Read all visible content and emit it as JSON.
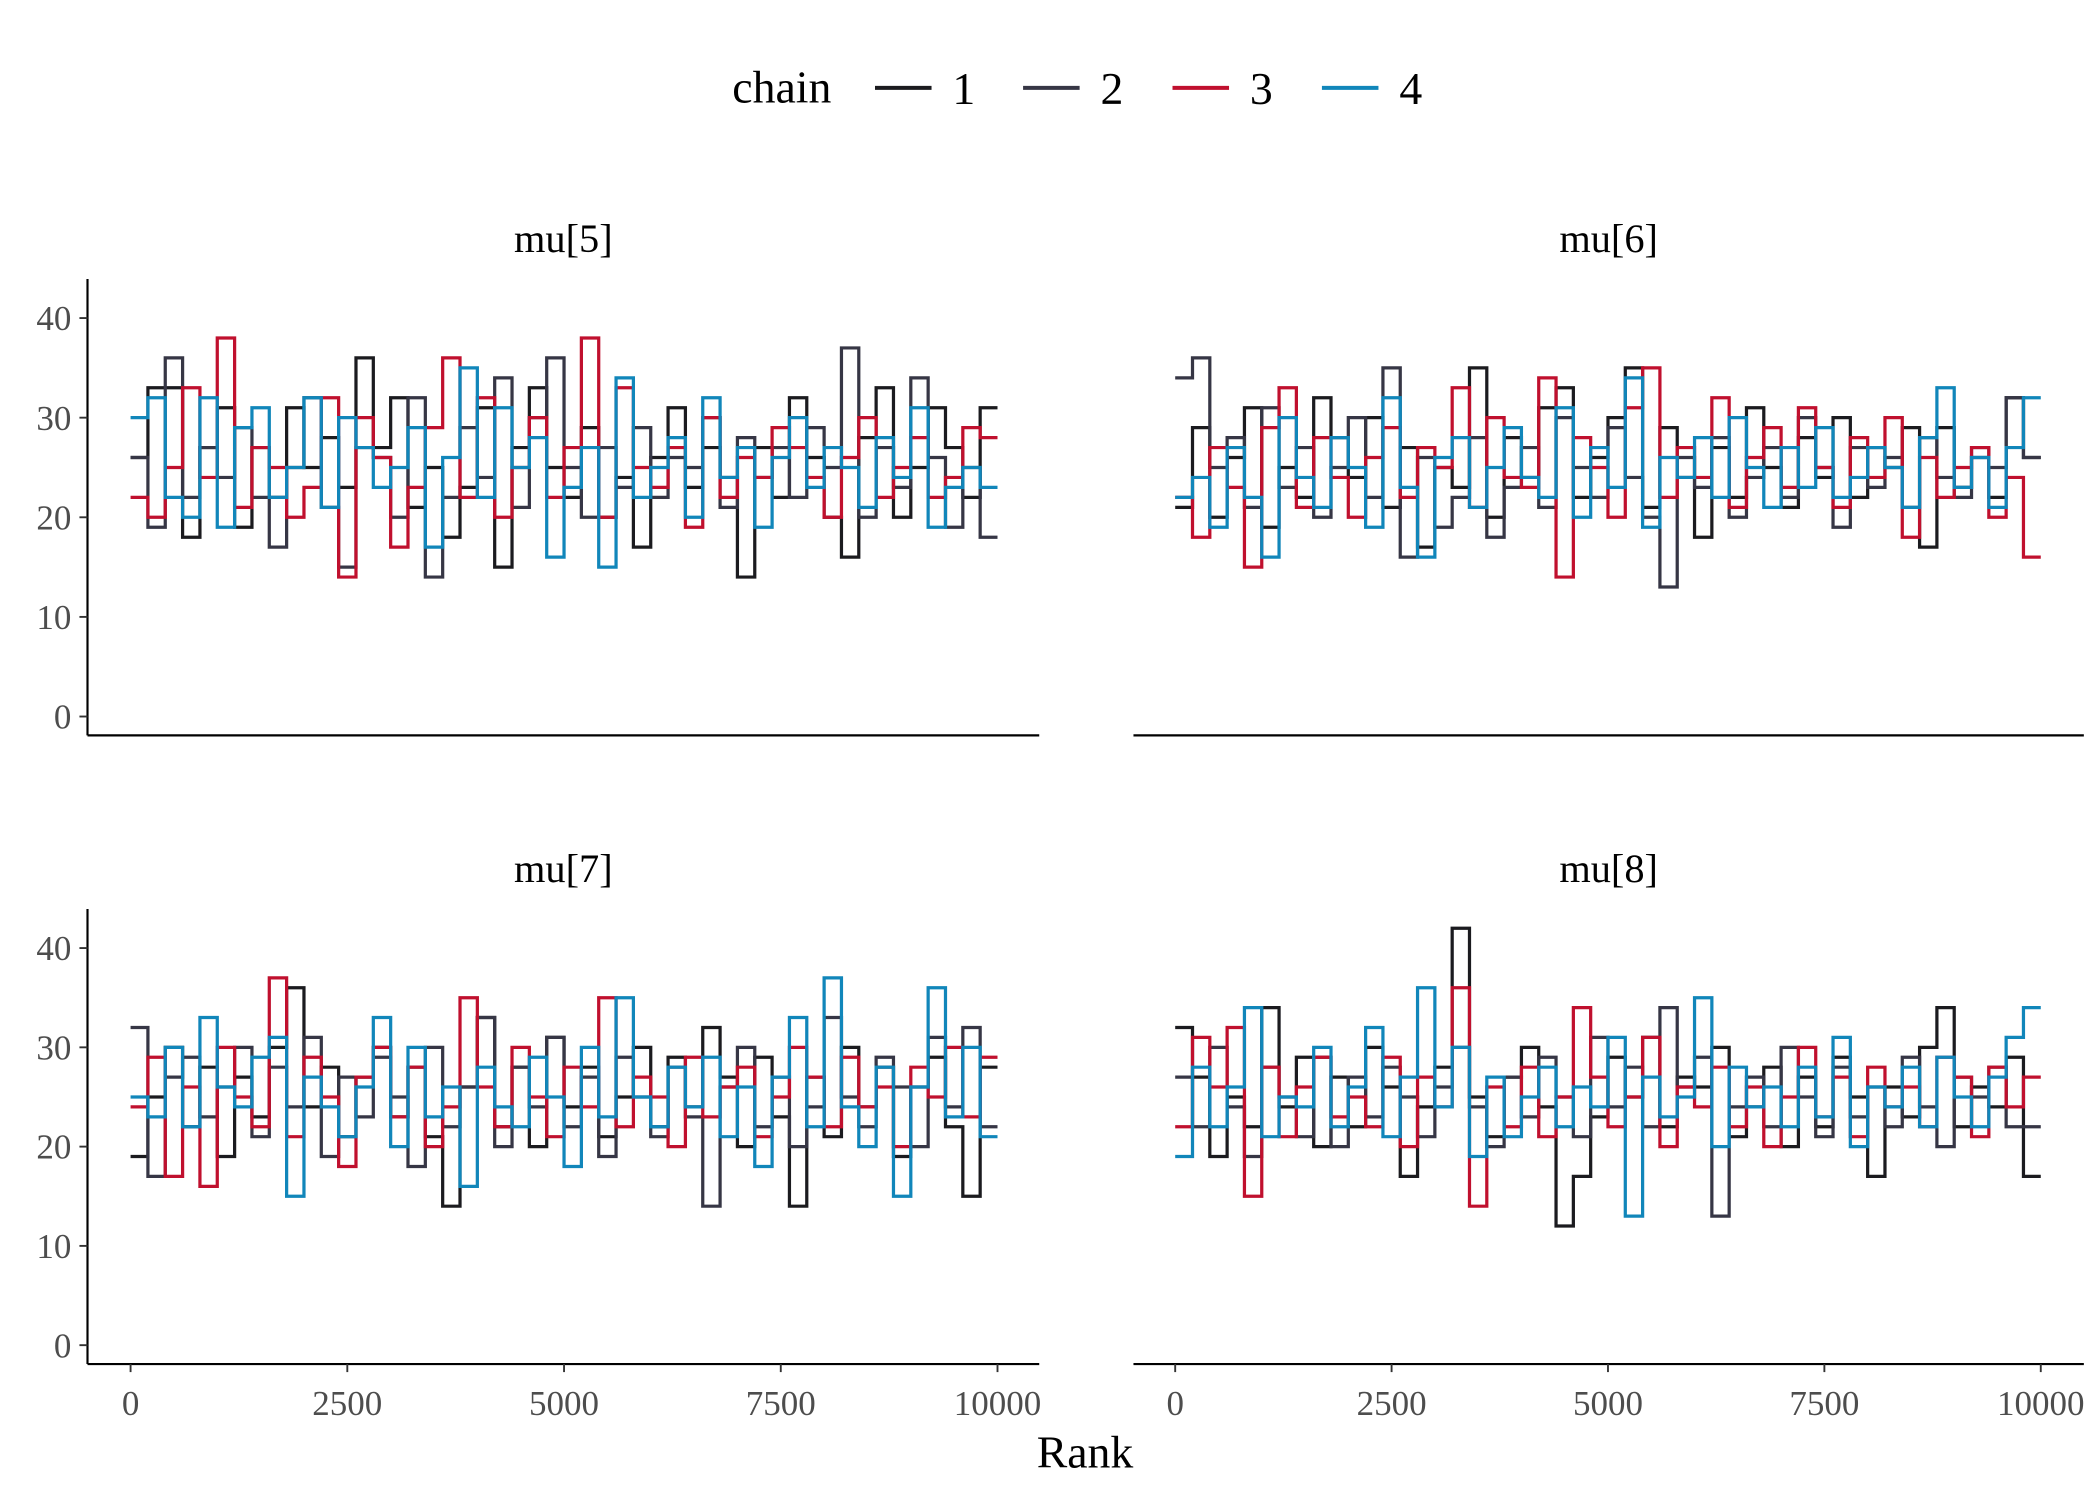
{
  "legend": {
    "title": "chain",
    "position": "top",
    "entries": [
      "1",
      "2",
      "3",
      "4"
    ]
  },
  "colors": {
    "1": "#1b1b1f",
    "2": "#363645",
    "3": "#c0102e",
    "4": "#1186ba"
  },
  "xlabel": "Rank",
  "chart_data": [
    {
      "type": "line",
      "step": true,
      "title": "mu[5]",
      "xlim": [
        0,
        10000
      ],
      "ylim": [
        0,
        42
      ],
      "xticks": [
        0,
        2500,
        5000,
        7500,
        10000
      ],
      "yticks": [
        0,
        10,
        20,
        30,
        40
      ],
      "bin_width": 200,
      "series": [
        {
          "name": "1",
          "values": [
            26,
            33,
            33,
            18,
            27,
            31,
            19,
            27,
            22,
            31,
            25,
            28,
            23,
            36,
            27,
            32,
            21,
            25,
            18,
            23,
            31,
            15,
            27,
            33,
            25,
            22,
            29,
            20,
            24,
            17,
            26,
            31,
            23,
            27,
            24,
            14,
            27,
            22,
            32,
            26,
            20,
            16,
            28,
            33,
            20,
            25,
            31,
            27,
            22,
            31
          ]
        },
        {
          "name": "2",
          "values": [
            26,
            19,
            36,
            22,
            27,
            24,
            29,
            22,
            17,
            25,
            32,
            21,
            15,
            27,
            26,
            20,
            32,
            14,
            22,
            29,
            24,
            34,
            21,
            30,
            36,
            25,
            20,
            27,
            23,
            29,
            22,
            26,
            25,
            30,
            21,
            28,
            24,
            27,
            22,
            29,
            25,
            37,
            20,
            27,
            23,
            34,
            26,
            19,
            25,
            18
          ]
        },
        {
          "name": "3",
          "values": [
            22,
            20,
            25,
            33,
            24,
            38,
            21,
            27,
            25,
            20,
            23,
            32,
            14,
            30,
            26,
            17,
            23,
            29,
            36,
            22,
            32,
            20,
            25,
            30,
            22,
            27,
            38,
            20,
            33,
            25,
            23,
            27,
            19,
            30,
            22,
            26,
            24,
            29,
            27,
            24,
            20,
            26,
            30,
            22,
            25,
            28,
            22,
            24,
            29,
            28
          ]
        },
        {
          "name": "4",
          "values": [
            30,
            32,
            22,
            20,
            32,
            19,
            29,
            31,
            22,
            25,
            32,
            21,
            30,
            27,
            23,
            25,
            29,
            17,
            26,
            35,
            22,
            31,
            25,
            28,
            16,
            23,
            27,
            15,
            34,
            22,
            25,
            28,
            20,
            32,
            24,
            27,
            19,
            26,
            30,
            23,
            27,
            25,
            21,
            28,
            24,
            31,
            19,
            23,
            25,
            23
          ]
        }
      ]
    },
    {
      "type": "line",
      "step": true,
      "title": "mu[6]",
      "xlim": [
        0,
        10000
      ],
      "ylim": [
        0,
        42
      ],
      "xticks": [
        0,
        2500,
        5000,
        7500,
        10000
      ],
      "yticks": [
        0,
        10,
        20,
        30,
        40
      ],
      "bin_width": 200,
      "series": [
        {
          "name": "1",
          "values": [
            21,
            29,
            20,
            26,
            31,
            19,
            25,
            22,
            32,
            28,
            24,
            30,
            21,
            27,
            17,
            25,
            23,
            35,
            20,
            28,
            24,
            31,
            33,
            22,
            26,
            30,
            35,
            21,
            29,
            24,
            18,
            27,
            22,
            31,
            25,
            21,
            28,
            24,
            30,
            22,
            27,
            25,
            29,
            17,
            29,
            23,
            26,
            22,
            32,
            26
          ]
        },
        {
          "name": "2",
          "values": [
            34,
            36,
            25,
            28,
            21,
            31,
            23,
            27,
            20,
            25,
            30,
            22,
            35,
            16,
            26,
            19,
            22,
            28,
            18,
            23,
            27,
            21,
            30,
            25,
            22,
            29,
            24,
            20,
            13,
            26,
            23,
            28,
            20,
            24,
            27,
            22,
            30,
            25,
            19,
            27,
            23,
            26,
            21,
            28,
            24,
            22,
            27,
            25,
            32,
            26
          ]
        },
        {
          "name": "3",
          "values": [
            22,
            18,
            27,
            23,
            15,
            29,
            33,
            21,
            28,
            24,
            20,
            26,
            29,
            22,
            27,
            25,
            33,
            21,
            30,
            24,
            23,
            34,
            14,
            28,
            25,
            20,
            31,
            35,
            22,
            27,
            24,
            32,
            21,
            26,
            29,
            23,
            31,
            25,
            21,
            28,
            24,
            30,
            18,
            26,
            22,
            25,
            27,
            20,
            24,
            16
          ]
        },
        {
          "name": "4",
          "values": [
            22,
            24,
            19,
            27,
            22,
            16,
            30,
            24,
            21,
            28,
            25,
            19,
            32,
            23,
            16,
            26,
            28,
            21,
            25,
            29,
            24,
            22,
            31,
            20,
            27,
            23,
            34,
            19,
            26,
            24,
            28,
            22,
            30,
            25,
            21,
            27,
            23,
            29,
            22,
            24,
            27,
            25,
            21,
            28,
            33,
            23,
            26,
            21,
            27,
            32
          ]
        }
      ]
    },
    {
      "type": "line",
      "step": true,
      "title": "mu[7]",
      "xlim": [
        0,
        10000
      ],
      "ylim": [
        0,
        42
      ],
      "xticks": [
        0,
        2500,
        5000,
        7500,
        10000
      ],
      "yticks": [
        0,
        10,
        20,
        30,
        40
      ],
      "bin_width": 200,
      "series": [
        {
          "name": "1",
          "values": [
            19,
            25,
            30,
            22,
            28,
            19,
            27,
            23,
            30,
            36,
            24,
            28,
            21,
            27,
            30,
            23,
            28,
            21,
            14,
            26,
            33,
            22,
            28,
            20,
            31,
            24,
            28,
            21,
            25,
            30,
            22,
            29,
            24,
            32,
            27,
            20,
            29,
            23,
            14,
            27,
            21,
            30,
            24,
            28,
            19,
            26,
            29,
            22,
            15,
            28
          ]
        },
        {
          "name": "2",
          "values": [
            32,
            17,
            27,
            29,
            23,
            26,
            30,
            21,
            28,
            24,
            31,
            19,
            27,
            23,
            29,
            25,
            18,
            30,
            22,
            26,
            33,
            20,
            28,
            24,
            31,
            22,
            27,
            19,
            29,
            25,
            21,
            28,
            23,
            14,
            26,
            30,
            22,
            27,
            20,
            24,
            33,
            25,
            22,
            29,
            26,
            20,
            31,
            24,
            32,
            22
          ]
        },
        {
          "name": "3",
          "values": [
            24,
            29,
            17,
            26,
            16,
            30,
            25,
            22,
            37,
            21,
            29,
            25,
            18,
            27,
            30,
            23,
            28,
            20,
            24,
            35,
            26,
            22,
            30,
            25,
            21,
            28,
            24,
            35,
            22,
            27,
            25,
            20,
            29,
            23,
            26,
            28,
            21,
            25,
            30,
            27,
            22,
            29,
            24,
            26,
            20,
            28,
            25,
            30,
            23,
            29
          ]
        },
        {
          "name": "4",
          "values": [
            25,
            23,
            30,
            22,
            33,
            26,
            24,
            29,
            31,
            15,
            27,
            24,
            21,
            26,
            33,
            20,
            30,
            23,
            26,
            16,
            28,
            24,
            22,
            29,
            25,
            18,
            30,
            23,
            35,
            25,
            22,
            28,
            24,
            29,
            21,
            26,
            18,
            27,
            33,
            22,
            37,
            24,
            20,
            28,
            15,
            26,
            36,
            23,
            30,
            21
          ]
        }
      ]
    },
    {
      "type": "line",
      "step": true,
      "title": "mu[8]",
      "xlim": [
        0,
        10000
      ],
      "ylim": [
        0,
        44
      ],
      "xticks": [
        0,
        2500,
        5000,
        7500,
        10000
      ],
      "yticks": [
        0,
        10,
        20,
        30,
        40
      ],
      "bin_width": 200,
      "series": [
        {
          "name": "1",
          "values": [
            32,
            27,
            19,
            25,
            22,
            34,
            24,
            29,
            20,
            27,
            22,
            30,
            26,
            17,
            24,
            28,
            42,
            25,
            21,
            27,
            30,
            24,
            12,
            17,
            23,
            29,
            25,
            31,
            22,
            27,
            26,
            30,
            21,
            24,
            28,
            20,
            27,
            22,
            29,
            25,
            17,
            26,
            23,
            30,
            34,
            22,
            26,
            24,
            29,
            17
          ]
        },
        {
          "name": "2",
          "values": [
            27,
            22,
            30,
            24,
            19,
            28,
            25,
            21,
            29,
            20,
            27,
            23,
            28,
            25,
            21,
            26,
            30,
            24,
            20,
            27,
            23,
            29,
            25,
            21,
            31,
            24,
            28,
            22,
            34,
            26,
            29,
            13,
            24,
            27,
            22,
            30,
            25,
            21,
            28,
            23,
            26,
            22,
            29,
            24,
            20,
            27,
            25,
            28,
            22,
            22
          ]
        },
        {
          "name": "3",
          "values": [
            22,
            31,
            26,
            32,
            15,
            28,
            21,
            26,
            29,
            23,
            25,
            22,
            29,
            20,
            27,
            24,
            36,
            14,
            26,
            22,
            28,
            21,
            25,
            34,
            27,
            22,
            25,
            31,
            20,
            26,
            24,
            28,
            22,
            26,
            20,
            25,
            30,
            23,
            27,
            21,
            28,
            24,
            26,
            22,
            29,
            27,
            21,
            28,
            24,
            27
          ]
        },
        {
          "name": "4",
          "values": [
            19,
            28,
            22,
            26,
            34,
            21,
            25,
            24,
            30,
            22,
            26,
            32,
            21,
            27,
            36,
            24,
            30,
            19,
            27,
            21,
            25,
            28,
            22,
            26,
            24,
            31,
            13,
            27,
            23,
            25,
            35,
            20,
            28,
            24,
            26,
            22,
            28,
            23,
            31,
            20,
            26,
            24,
            28,
            22,
            29,
            25,
            22,
            27,
            31,
            34
          ]
        }
      ]
    }
  ]
}
